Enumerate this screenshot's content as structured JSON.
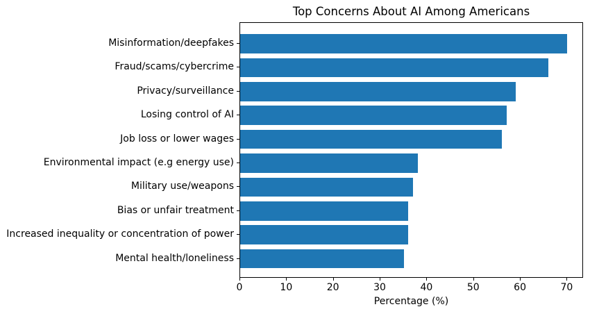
{
  "figure": {
    "background": "#ffffff"
  },
  "chart_data": {
    "type": "bar",
    "orientation": "horizontal",
    "title": "Top Concerns About AI Among Americans",
    "xlabel": "Percentage (%)",
    "ylabel": "",
    "categories": [
      "Misinformation/deepfakes",
      "Fraud/scams/cybercrime",
      "Privacy/surveillance",
      "Losing control of AI",
      "Job loss or lower wages",
      "Environmental impact (e.g energy use)",
      "Military use/weapons",
      "Bias or unfair treatment",
      "Increased inequality or concentration of power",
      "Mental health/loneliness"
    ],
    "values": [
      70,
      66,
      59,
      57,
      56,
      38,
      37,
      36,
      36,
      35
    ],
    "xlim": [
      0,
      73.5
    ],
    "xticks": [
      0,
      10,
      20,
      30,
      40,
      50,
      60,
      70
    ],
    "bar_color": "#1f77b4",
    "axis_color": "#000000",
    "text_color": "#000000",
    "grid": "off",
    "legend": "none"
  }
}
